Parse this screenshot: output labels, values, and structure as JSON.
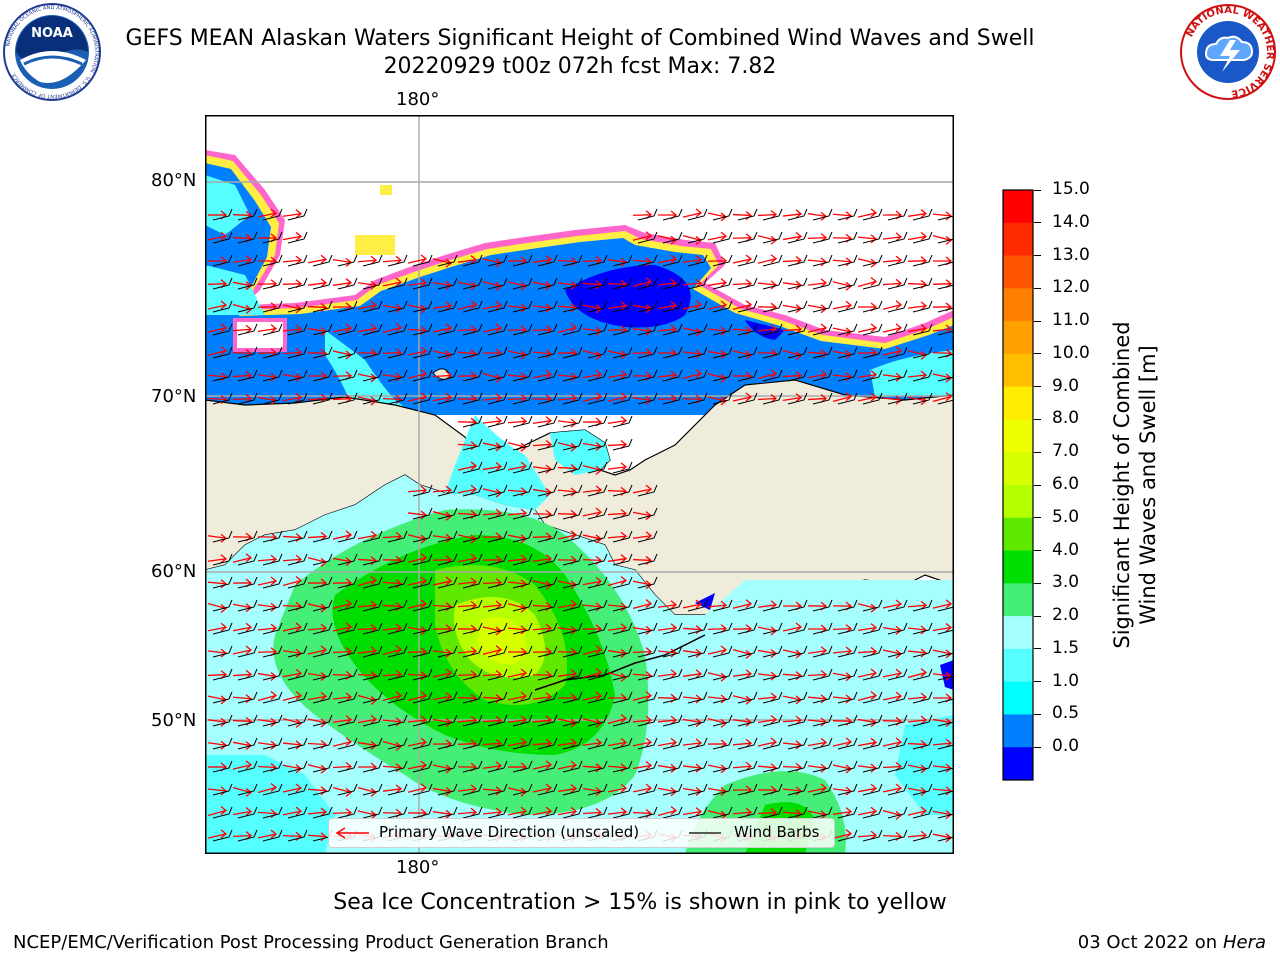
{
  "header": {
    "title_line1": "GEFS MEAN Alaskan Waters Significant Height of Combined Wind Waves and Swell",
    "title_line2": "20220929 t00z 072h fcst   Max: 7.82"
  },
  "logos": {
    "noaa_text": "NOAA",
    "noaa_ring_text": "NATIONAL OCEANIC AND ATMOSPHERIC ADMINISTRATION · U.S. DEPARTMENT OF COMMERCE",
    "nws_ring_text": "NATIONAL WEATHER SERVICE"
  },
  "map": {
    "lon_label_top": "180°",
    "lon_label_bottom": "180°",
    "lat_labels": [
      "80°N",
      "70°N",
      "60°N",
      "50°N"
    ]
  },
  "colorbar": {
    "label_line1": "Significant Height of Combined",
    "label_line2": "Wind Waves and Swell [m]",
    "ticks": [
      "15.0",
      "14.0",
      "13.0",
      "12.0",
      "11.0",
      "10.0",
      "9.0",
      "8.0",
      "7.0",
      "6.0",
      "5.0",
      "4.0",
      "3.0",
      "2.0",
      "1.5",
      "1.0",
      "0.5",
      "0.0"
    ],
    "colors_top_to_bottom": [
      "#ff0000",
      "#ff2a00",
      "#ff5500",
      "#ff7f00",
      "#ff9f00",
      "#ffbf00",
      "#ffec00",
      "#f0ff00",
      "#d6ff00",
      "#b6ff00",
      "#60e800",
      "#00dd00",
      "#44ee77",
      "#a6ffff",
      "#55ffff",
      "#00ffff",
      "#0080ff",
      "#0000ff"
    ]
  },
  "legend": {
    "wave_label": "Primary Wave Direction (unscaled)",
    "barb_label": "Wind Barbs"
  },
  "footer": {
    "note": "Sea Ice Concentration > 15% is shown in pink to yellow",
    "credit": "NCEP/EMC/Verification Post Processing Product Generation Branch",
    "date": "03 Oct 2022 on",
    "machine": "Hera"
  }
}
